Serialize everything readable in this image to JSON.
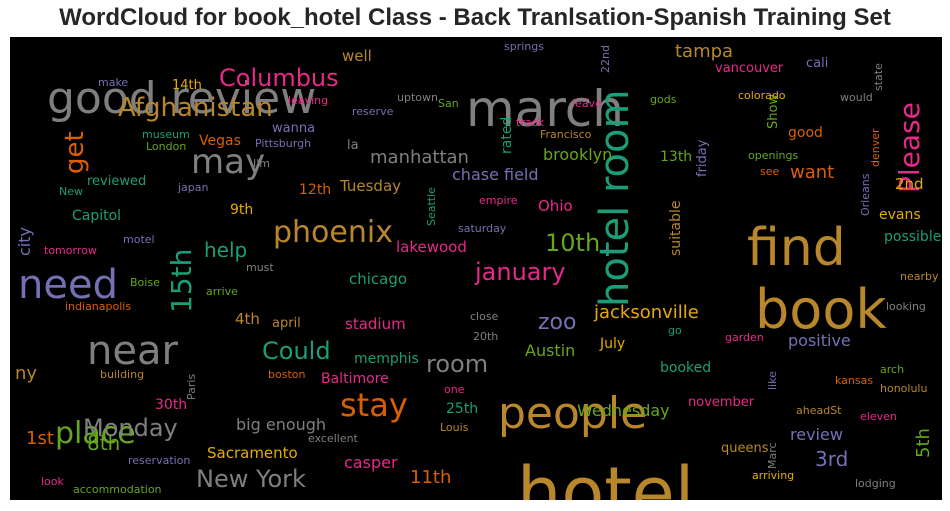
{
  "title": "WordCloud for book_hotel Class - Back Tranlsation-Spanish Training Set",
  "colors": {
    "background": "#000000",
    "gray": "#7f7f7f",
    "gold": "#b8862b",
    "teal": "#1b9e77",
    "orange": "#d95f02",
    "purple": "#7570b3",
    "pink": "#e7298a",
    "green": "#66a61e",
    "yellow": "#e6ab02",
    "brown": "#a6761d"
  },
  "words": [
    {
      "t": "hotel",
      "c": "gold"
    },
    {
      "t": "book",
      "c": "gold"
    },
    {
      "t": "find",
      "c": "gold"
    },
    {
      "t": "march",
      "c": "gray"
    },
    {
      "t": "good review",
      "c": "gray"
    },
    {
      "t": "hotel room",
      "c": "teal"
    },
    {
      "t": "people",
      "c": "gold"
    },
    {
      "t": "need",
      "c": "purple"
    },
    {
      "t": "near",
      "c": "gray"
    },
    {
      "t": "stay",
      "c": "orange"
    },
    {
      "t": "place",
      "c": "green"
    },
    {
      "t": "may",
      "c": "gray"
    },
    {
      "t": "phoenix",
      "c": "gold"
    },
    {
      "t": "15th",
      "c": "teal"
    },
    {
      "t": "Please",
      "c": "pink"
    },
    {
      "t": "Columbus",
      "c": "pink"
    },
    {
      "t": "Afghanistan",
      "c": "gold"
    },
    {
      "t": "get",
      "c": "orange"
    },
    {
      "t": "10th",
      "c": "green"
    },
    {
      "t": "january",
      "c": "pink"
    },
    {
      "t": "Monday",
      "c": "gray"
    },
    {
      "t": "New York",
      "c": "gray"
    },
    {
      "t": "room",
      "c": "gray"
    },
    {
      "t": "Could",
      "c": "teal"
    },
    {
      "t": "zoo",
      "c": "purple"
    },
    {
      "t": "jacksonville",
      "c": "yellow"
    },
    {
      "t": "help",
      "c": "teal"
    },
    {
      "t": "manhattan",
      "c": "gray"
    },
    {
      "t": "tampa",
      "c": "gold"
    },
    {
      "t": "want",
      "c": "orange"
    },
    {
      "t": "chase field",
      "c": "purple"
    },
    {
      "t": "brooklyn",
      "c": "green"
    },
    {
      "t": "8th",
      "c": "green"
    },
    {
      "t": "1st",
      "c": "orange"
    },
    {
      "t": "3rd",
      "c": "purple"
    },
    {
      "t": "5th",
      "c": "green"
    },
    {
      "t": "11th",
      "c": "orange"
    },
    {
      "t": "review",
      "c": "purple"
    },
    {
      "t": "positive",
      "c": "purple"
    },
    {
      "t": "big enough",
      "c": "gray"
    },
    {
      "t": "casper",
      "c": "pink"
    },
    {
      "t": "Sacramento",
      "c": "yellow"
    },
    {
      "t": "Wednesday",
      "c": "green"
    },
    {
      "t": "Austin",
      "c": "green"
    },
    {
      "t": "memphis",
      "c": "teal"
    },
    {
      "t": "Baltimore",
      "c": "pink"
    },
    {
      "t": "stadium",
      "c": "pink"
    },
    {
      "t": "chicago",
      "c": "teal"
    },
    {
      "t": "lakewood",
      "c": "pink"
    },
    {
      "t": "Ohio",
      "c": "pink"
    },
    {
      "t": "Tuesday",
      "c": "gold"
    },
    {
      "t": "12th",
      "c": "orange"
    },
    {
      "t": "9th",
      "c": "yellow"
    },
    {
      "t": "4th",
      "c": "gold"
    },
    {
      "t": "april",
      "c": "gold"
    },
    {
      "t": "city",
      "c": "purple"
    },
    {
      "t": "ny",
      "c": "gold"
    },
    {
      "t": "30th",
      "c": "pink"
    },
    {
      "t": "25th",
      "c": "teal"
    },
    {
      "t": "13th",
      "c": "green"
    },
    {
      "t": "2nd",
      "c": "yellow"
    },
    {
      "t": "14th",
      "c": "yellow"
    },
    {
      "t": "evans",
      "c": "yellow"
    },
    {
      "t": "possible",
      "c": "teal"
    },
    {
      "t": "good",
      "c": "orange"
    },
    {
      "t": "Show",
      "c": "green"
    },
    {
      "t": "cali",
      "c": "purple"
    },
    {
      "t": "vancouver",
      "c": "pink"
    },
    {
      "t": "well",
      "c": "gold"
    },
    {
      "t": "Vegas",
      "c": "orange"
    },
    {
      "t": "wanna",
      "c": "purple"
    },
    {
      "t": "la",
      "c": "gray"
    },
    {
      "t": "reviewed",
      "c": "teal"
    },
    {
      "t": "Capitol",
      "c": "teal"
    },
    {
      "t": "rated",
      "c": "teal"
    },
    {
      "t": "friday",
      "c": "purple"
    },
    {
      "t": "suitable",
      "c": "gold"
    },
    {
      "t": "July",
      "c": "yellow"
    },
    {
      "t": "booked",
      "c": "teal"
    },
    {
      "t": "november",
      "c": "pink"
    },
    {
      "t": "queens",
      "c": "gold"
    },
    {
      "t": "arriving",
      "c": "yellow"
    },
    {
      "t": "lodging",
      "c": "gray"
    },
    {
      "t": "eleven",
      "c": "pink"
    },
    {
      "t": "honolulu",
      "c": "gold"
    },
    {
      "t": "aheadSt",
      "c": "gold"
    },
    {
      "t": "kansas",
      "c": "orange"
    },
    {
      "t": "arch",
      "c": "green"
    },
    {
      "t": "looking",
      "c": "gray"
    },
    {
      "t": "nearby",
      "c": "gold"
    },
    {
      "t": "garden",
      "c": "pink"
    },
    {
      "t": "go",
      "c": "teal"
    },
    {
      "t": "Orleans",
      "c": "purple"
    },
    {
      "t": "denver",
      "c": "orange"
    },
    {
      "t": "openings",
      "c": "green"
    },
    {
      "t": "see",
      "c": "orange"
    },
    {
      "t": "colorado",
      "c": "yellow"
    },
    {
      "t": "would",
      "c": "gray"
    },
    {
      "t": "state",
      "c": "gray"
    },
    {
      "t": "gods",
      "c": "green"
    },
    {
      "t": "leave",
      "c": "pink"
    },
    {
      "t": "track",
      "c": "pink"
    },
    {
      "t": "Francisco",
      "c": "gold"
    },
    {
      "t": "springs",
      "c": "purple"
    },
    {
      "t": "22nd",
      "c": "purple"
    },
    {
      "t": "San",
      "c": "green"
    },
    {
      "t": "uptown",
      "c": "gray"
    },
    {
      "t": "reserve",
      "c": "purple"
    },
    {
      "t": "leaving",
      "c": "pink"
    },
    {
      "t": "make",
      "c": "purple"
    },
    {
      "t": "museum",
      "c": "teal"
    },
    {
      "t": "London",
      "c": "green"
    },
    {
      "t": "Pittsburgh",
      "c": "purple"
    },
    {
      "t": "I'm",
      "c": "gray"
    },
    {
      "t": "New",
      "c": "teal"
    },
    {
      "t": "japan",
      "c": "purple"
    },
    {
      "t": "empire",
      "c": "pink"
    },
    {
      "t": "saturday",
      "c": "purple"
    },
    {
      "t": "Seattle",
      "c": "teal"
    },
    {
      "t": "tomorrow",
      "c": "pink"
    },
    {
      "t": "motel",
      "c": "purple"
    },
    {
      "t": "must",
      "c": "gray"
    },
    {
      "t": "Boise",
      "c": "green"
    },
    {
      "t": "arrive",
      "c": "green"
    },
    {
      "t": "indianapolis",
      "c": "orange"
    },
    {
      "t": "close",
      "c": "gray"
    },
    {
      "t": "20th",
      "c": "gray"
    },
    {
      "t": "building",
      "c": "gold"
    },
    {
      "t": "Paris",
      "c": "gray"
    },
    {
      "t": "boston",
      "c": "orange"
    },
    {
      "t": "one",
      "c": "pink"
    },
    {
      "t": "excellent",
      "c": "gray"
    },
    {
      "t": "Louis",
      "c": "gold"
    },
    {
      "t": "reservation",
      "c": "purple"
    },
    {
      "t": "look",
      "c": "pink"
    },
    {
      "t": "accommodation",
      "c": "green"
    },
    {
      "t": "like",
      "c": "purple"
    },
    {
      "t": "Marc",
      "c": "gray"
    }
  ]
}
